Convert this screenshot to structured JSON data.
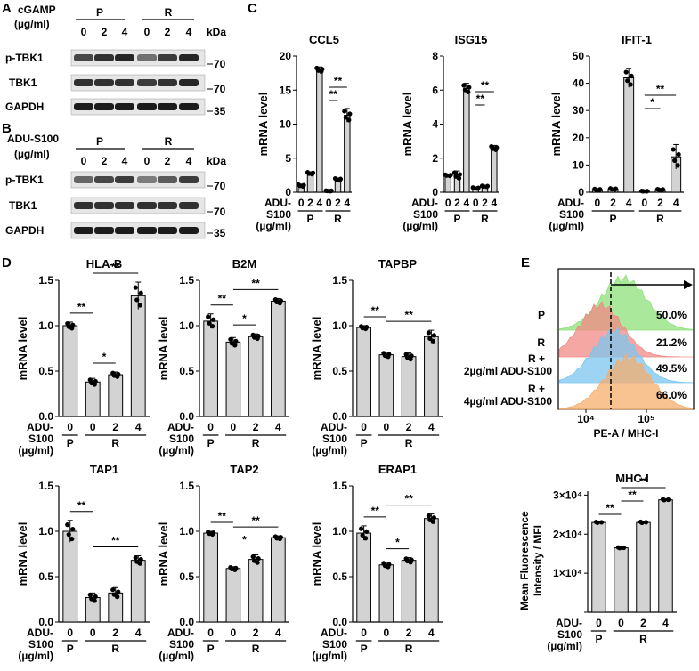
{
  "panel_letters": {
    "A": "A",
    "B": "B",
    "C": "C",
    "D": "D",
    "E": "E"
  },
  "blots": [
    {
      "id": "A",
      "treatment_label": "cGAMP",
      "unit_label": "(µg/ml)",
      "groups": [
        "P",
        "R"
      ],
      "doses": [
        "0",
        "2",
        "4",
        "0",
        "2",
        "4"
      ],
      "kda_label": "kDa",
      "rows": [
        {
          "label": "p-TBK1",
          "marker": "70"
        },
        {
          "label": "TBK1",
          "marker": "70"
        },
        {
          "label": "GAPDH",
          "marker": "35"
        }
      ]
    },
    {
      "id": "B",
      "treatment_label": "ADU-S100",
      "unit_label": "(µg/ml)",
      "groups": [
        "P",
        "R"
      ],
      "doses": [
        "0",
        "2",
        "4",
        "0",
        "2",
        "4"
      ],
      "kda_label": "kDa",
      "rows": [
        {
          "label": "p-TBK1",
          "marker": "70"
        },
        {
          "label": "TBK1",
          "marker": "70"
        },
        {
          "label": "GAPDH",
          "marker": "35"
        }
      ]
    }
  ],
  "chart_data": [
    {
      "id": "ccl5",
      "panel": "C",
      "type": "bar",
      "title": "CCL5",
      "ylabel": "mRNA level",
      "categories": [
        "0",
        "2",
        "4",
        "0",
        "2",
        "4"
      ],
      "groups": [
        "P",
        "R"
      ],
      "x_axis_title": [
        "ADU-",
        "S100",
        "(µg/ml)"
      ],
      "values": [
        1.0,
        2.8,
        18.0,
        0.2,
        1.9,
        11.3
      ],
      "errors": [
        0.2,
        0.2,
        0.4,
        0.05,
        0.2,
        1.0
      ],
      "yticks": [
        "0",
        "5",
        "10",
        "15",
        "20"
      ],
      "ylim": [
        0,
        20
      ],
      "significance": [
        {
          "from": 3,
          "to": 5,
          "label": "**"
        },
        {
          "from": 3,
          "to": 4,
          "label": "**"
        }
      ]
    },
    {
      "id": "isg15",
      "panel": "C",
      "type": "bar",
      "title": "ISG15",
      "ylabel": "mRNA level",
      "categories": [
        "0",
        "2",
        "4",
        "0",
        "2",
        "4"
      ],
      "groups": [
        "P",
        "R"
      ],
      "x_axis_title": [
        "ADU-",
        "S100",
        "(µg/ml)"
      ],
      "values": [
        1.0,
        1.0,
        6.1,
        0.25,
        0.35,
        2.6
      ],
      "errors": [
        0.05,
        0.25,
        0.3,
        0.04,
        0.04,
        0.15
      ],
      "yticks": [
        "0",
        "2",
        "4",
        "6",
        "8"
      ],
      "ylim": [
        0,
        8
      ],
      "significance": [
        {
          "from": 3,
          "to": 5,
          "label": "**"
        },
        {
          "from": 3,
          "to": 4,
          "label": "**"
        }
      ]
    },
    {
      "id": "ifit1",
      "panel": "C",
      "type": "bar",
      "title": "IFIT-1",
      "ylabel": "mRNA level",
      "categories": [
        "0",
        "2",
        "4",
        "0",
        "2",
        "4"
      ],
      "groups": [
        "P",
        "R"
      ],
      "x_axis_title": [
        "ADU-",
        "S100",
        "(µg/ml)"
      ],
      "values": [
        1.0,
        1.2,
        42.0,
        0.4,
        1.0,
        13.0
      ],
      "errors": [
        0.3,
        0.3,
        3.5,
        0.1,
        0.2,
        4.5
      ],
      "yticks": [
        "0",
        "10",
        "20",
        "30",
        "40",
        "50"
      ],
      "ylim": [
        0,
        50
      ],
      "significance": [
        {
          "from": 3,
          "to": 5,
          "label": "**"
        },
        {
          "from": 3,
          "to": 4,
          "label": "*"
        }
      ]
    },
    {
      "id": "hlab",
      "panel": "D",
      "type": "bar",
      "title": "HLA-B",
      "ylabel": "mRNA level",
      "categories": [
        "0",
        "0",
        "2",
        "4"
      ],
      "groups": [
        "P",
        "R"
      ],
      "x_axis_title": [
        "ADU-",
        "S100",
        "(µg/ml)"
      ],
      "values": [
        1.0,
        0.38,
        0.46,
        1.33
      ],
      "errors": [
        0.04,
        0.04,
        0.03,
        0.15
      ],
      "yticks": [
        "0.0",
        "0.5",
        "1.0",
        "1.5"
      ],
      "ylim": [
        0,
        1.5
      ],
      "significance": [
        {
          "from": 0,
          "to": 1,
          "label": "**"
        },
        {
          "from": 1,
          "to": 2,
          "label": "*"
        },
        {
          "from": 1,
          "to": 3,
          "label": "**"
        }
      ]
    },
    {
      "id": "b2m",
      "panel": "D",
      "type": "bar",
      "title": "B2M",
      "ylabel": "mRNA level",
      "categories": [
        "0",
        "0",
        "2",
        "4"
      ],
      "groups": [
        "P",
        "R"
      ],
      "x_axis_title": [
        "ADU-",
        "S100",
        "(µg/ml)"
      ],
      "values": [
        1.05,
        0.82,
        0.88,
        1.27
      ],
      "errors": [
        0.08,
        0.05,
        0.03,
        0.03
      ],
      "yticks": [
        "0.0",
        "0.5",
        "1.0",
        "1.5"
      ],
      "ylim": [
        0,
        1.5
      ],
      "significance": [
        {
          "from": 0,
          "to": 1,
          "label": "**"
        },
        {
          "from": 1,
          "to": 2,
          "label": "*"
        },
        {
          "from": 1,
          "to": 3,
          "label": "**"
        }
      ]
    },
    {
      "id": "tapbp",
      "panel": "D",
      "type": "bar",
      "title": "TAPBP",
      "ylabel": "mRNA level",
      "categories": [
        "0",
        "0",
        "2",
        "4"
      ],
      "groups": [
        "P",
        "R"
      ],
      "x_axis_title": [
        "ADU-",
        "S100",
        "(µg/ml)"
      ],
      "values": [
        0.98,
        0.68,
        0.66,
        0.88
      ],
      "errors": [
        0.02,
        0.03,
        0.04,
        0.07
      ],
      "yticks": [
        "0.0",
        "0.5",
        "1.0",
        "1.5"
      ],
      "ylim": [
        0,
        1.5
      ],
      "significance": [
        {
          "from": 0,
          "to": 1,
          "label": "**"
        },
        {
          "from": 1,
          "to": 3,
          "label": "**"
        }
      ]
    },
    {
      "id": "tap1",
      "panel": "D",
      "type": "bar",
      "title": "TAP1",
      "ylabel": "mRNA level",
      "categories": [
        "0",
        "0",
        "2",
        "4"
      ],
      "groups": [
        "P",
        "R"
      ],
      "x_axis_title": [
        "ADU-",
        "S100",
        "(µg/ml)"
      ],
      "values": [
        1.0,
        0.27,
        0.32,
        0.68
      ],
      "errors": [
        0.12,
        0.05,
        0.06,
        0.05
      ],
      "yticks": [
        "0.0",
        "0.5",
        "1.0",
        "1.5"
      ],
      "ylim": [
        0,
        1.5
      ],
      "significance": [
        {
          "from": 0,
          "to": 1,
          "label": "**"
        },
        {
          "from": 1,
          "to": 3,
          "label": "**"
        }
      ]
    },
    {
      "id": "tap2",
      "panel": "D",
      "type": "bar",
      "title": "TAP2",
      "ylabel": "mRNA level",
      "categories": [
        "0",
        "0",
        "2",
        "4"
      ],
      "groups": [
        "P",
        "R"
      ],
      "x_axis_title": [
        "ADU-",
        "S100",
        "(µg/ml)"
      ],
      "values": [
        0.98,
        0.59,
        0.69,
        0.93
      ],
      "errors": [
        0.02,
        0.02,
        0.05,
        0.02
      ],
      "yticks": [
        "0.0",
        "0.5",
        "1.0",
        "1.5"
      ],
      "ylim": [
        0,
        1.5
      ],
      "significance": [
        {
          "from": 0,
          "to": 1,
          "label": "**"
        },
        {
          "from": 1,
          "to": 2,
          "label": "*"
        },
        {
          "from": 1,
          "to": 3,
          "label": "**"
        }
      ]
    },
    {
      "id": "erap1",
      "panel": "D",
      "type": "bar",
      "title": "ERAP1",
      "ylabel": "mRNA level",
      "categories": [
        "0",
        "0",
        "2",
        "4"
      ],
      "groups": [
        "P",
        "R"
      ],
      "x_axis_title": [
        "ADU-",
        "S100",
        "(µg/ml)"
      ],
      "values": [
        0.98,
        0.63,
        0.68,
        1.14
      ],
      "errors": [
        0.08,
        0.03,
        0.03,
        0.05
      ],
      "yticks": [
        "0.0",
        "0.5",
        "1.0",
        "1.5"
      ],
      "ylim": [
        0,
        1.5
      ],
      "significance": [
        {
          "from": 0,
          "to": 1,
          "label": "**"
        },
        {
          "from": 1,
          "to": 2,
          "label": "*"
        },
        {
          "from": 1,
          "to": 3,
          "label": "**"
        }
      ]
    },
    {
      "id": "mhci",
      "panel": "E",
      "type": "bar",
      "title": "MHC-I",
      "ylabel": "Mean Fluorescence Intensity / MFI",
      "categories": [
        "0",
        "0",
        "2",
        "4"
      ],
      "groups": [
        "P",
        "R"
      ],
      "x_axis_title": [
        "ADU-",
        "S100",
        "(µg/ml)"
      ],
      "values": [
        23000,
        16500,
        23000,
        28800
      ],
      "errors": [
        200,
        150,
        250,
        200
      ],
      "yticks": [
        "1×10⁴",
        "2×10⁴",
        "3×10⁴"
      ],
      "ytick_values": [
        10000,
        20000,
        30000
      ],
      "ylim": [
        0,
        31000
      ],
      "significance": [
        {
          "from": 0,
          "to": 1,
          "label": "**"
        },
        {
          "from": 1,
          "to": 2,
          "label": "**"
        },
        {
          "from": 1,
          "to": 3,
          "label": "**"
        }
      ]
    }
  ],
  "flow": {
    "panel": "E",
    "xlabel": "PE-A / MHC-I",
    "xticks": [
      "10⁴",
      "10⁵"
    ],
    "samples": [
      {
        "label": "P",
        "percent": "50.0%",
        "color": "#8ee07a"
      },
      {
        "label": "R",
        "percent": "21.2%",
        "color": "#f08a84"
      },
      {
        "label_lines": [
          "R +",
          "2µg/ml ADU-S100"
        ],
        "percent": "49.5%",
        "color": "#7cc6ef"
      },
      {
        "label_lines": [
          "R +",
          "4µg/ml ADU-S100"
        ],
        "percent": "66.0%",
        "color": "#f5ad6c"
      }
    ]
  }
}
